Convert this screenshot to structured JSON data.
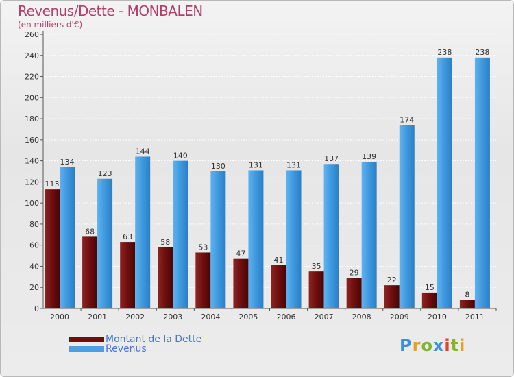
{
  "chart_data": {
    "type": "bar",
    "title": "Revenus/Dette - MONBALEN",
    "subtitle": "(en milliers d'€)",
    "categories": [
      "2000",
      "2001",
      "2002",
      "2003",
      "2004",
      "2005",
      "2006",
      "2007",
      "2008",
      "2009",
      "2010",
      "2011"
    ],
    "series": [
      {
        "name": "Montant de la Dette",
        "color": "#7a1414",
        "values": [
          113,
          68,
          63,
          58,
          53,
          47,
          41,
          35,
          29,
          22,
          15,
          8
        ]
      },
      {
        "name": "Revenus",
        "color": "#4aa0e2",
        "values": [
          134,
          123,
          144,
          140,
          130,
          131,
          131,
          137,
          139,
          174,
          238,
          238
        ]
      }
    ],
    "ylim": [
      0,
      260
    ],
    "yticks": [
      "0",
      "20",
      "40",
      "60",
      "80",
      "100",
      "120",
      "140",
      "160",
      "180",
      "200",
      "220",
      "240",
      "260"
    ],
    "grid": true,
    "legend": "bottom-left"
  },
  "brand": {
    "letters": [
      "P",
      "r",
      "o",
      "x",
      "i",
      "t",
      "i"
    ],
    "colors": [
      "#3d8fd6",
      "#e8a020",
      "#7fb62c",
      "#3d8fd6",
      "#e8402a",
      "#7fb62c",
      "#e8a020"
    ]
  }
}
